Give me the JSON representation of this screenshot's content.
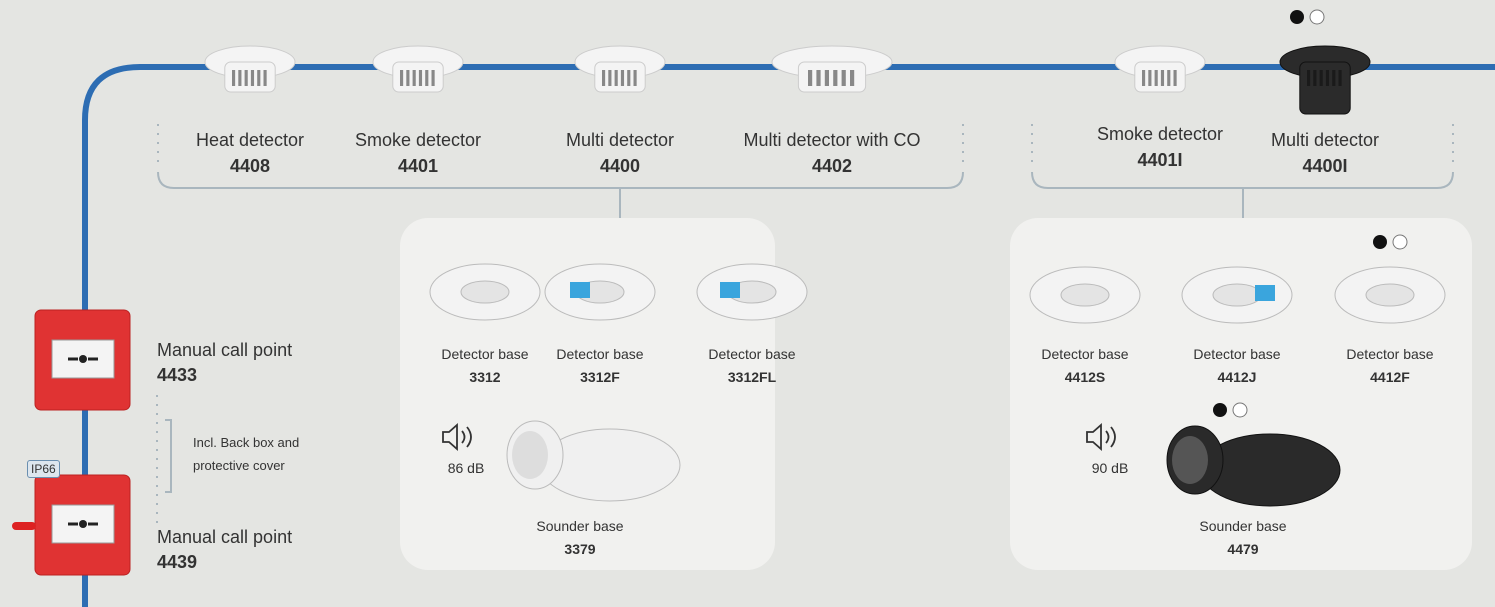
{
  "detector_groups": [
    {
      "items": [
        {
          "name": "Heat detector",
          "code": "4408"
        },
        {
          "name": "Smoke detector",
          "code": "4401"
        },
        {
          "name": "Multi detector",
          "code": "4400"
        },
        {
          "name": "Multi detector with CO",
          "code": "4402"
        }
      ],
      "bases": [
        {
          "name": "Detector base",
          "code": "3312"
        },
        {
          "name": "Detector base",
          "code": "3312F"
        },
        {
          "name": "Detector base",
          "code": "3312FL"
        }
      ],
      "sounder": {
        "level": "86 dB",
        "name": "Sounder base",
        "code": "3379"
      }
    },
    {
      "items": [
        {
          "name": "Smoke detector",
          "code": "4401I"
        },
        {
          "name": "Multi detector",
          "code": "4400I"
        }
      ],
      "bases": [
        {
          "name": "Detector base",
          "code": "4412S"
        },
        {
          "name": "Detector base",
          "code": "4412J"
        },
        {
          "name": "Detector base",
          "code": "4412F"
        }
      ],
      "sounder": {
        "level": "90 dB",
        "name": "Sounder base",
        "code": "4479"
      }
    }
  ],
  "call_points": [
    {
      "name": "Manual call point",
      "code": "4433"
    },
    {
      "name": "Manual call point",
      "code": "4439"
    }
  ],
  "call_point_note": "Incl. Back box and protective cover",
  "badge": "IP66"
}
